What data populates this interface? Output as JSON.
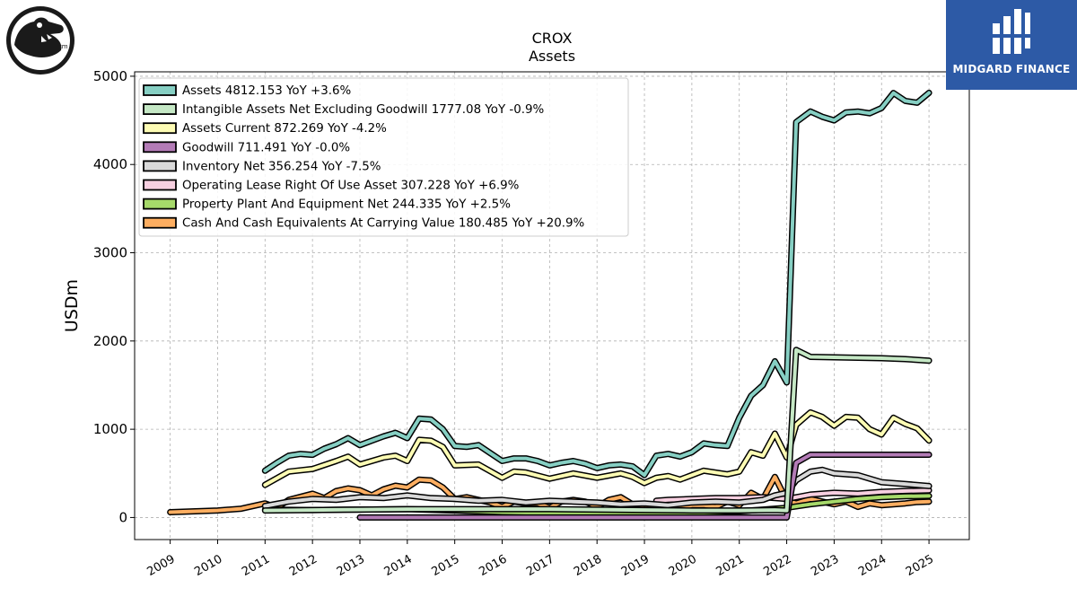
{
  "header": {
    "ticker": "CROX",
    "subtitle": "Assets"
  },
  "brand": {
    "name": "MIDGARD FINANCE",
    "color": "#2d5aa6"
  },
  "logo": {
    "icon": "crocodile-logo",
    "mark": "tm"
  },
  "chart_data": {
    "type": "line",
    "ylabel": "USDm",
    "xlabel": "",
    "ylim": [
      -250,
      5050
    ],
    "xlim": [
      2008.25,
      2025.85
    ],
    "yticks": [
      0,
      1000,
      2000,
      3000,
      4000,
      5000
    ],
    "xticks": [
      "2009",
      "2010",
      "2011",
      "2012",
      "2013",
      "2014",
      "2015",
      "2016",
      "2017",
      "2018",
      "2019",
      "2020",
      "2021",
      "2022",
      "2023",
      "2024",
      "2025"
    ],
    "grid": true,
    "legend_position": "top-left",
    "series": [
      {
        "name": "Assets",
        "legend": "Assets  4812.153 YoY +3.6%",
        "color": "#86cfc3",
        "x": [
          2011.0,
          2011.25,
          2011.5,
          2011.75,
          2012.0,
          2012.25,
          2012.5,
          2012.75,
          2013.0,
          2013.25,
          2013.5,
          2013.75,
          2014.0,
          2014.25,
          2014.5,
          2014.75,
          2015.0,
          2015.25,
          2015.5,
          2015.75,
          2016.0,
          2016.25,
          2016.5,
          2016.75,
          2017.0,
          2017.25,
          2017.5,
          2017.75,
          2018.0,
          2018.25,
          2018.5,
          2018.75,
          2019.0,
          2019.25,
          2019.5,
          2019.75,
          2020.0,
          2020.25,
          2020.5,
          2020.75,
          2021.0,
          2021.25,
          2021.5,
          2021.75,
          2022.0,
          2022.2,
          2022.5,
          2022.75,
          2023.0,
          2023.25,
          2023.5,
          2023.75,
          2024.0,
          2024.25,
          2024.5,
          2024.75,
          2025.0
        ],
        "values": [
          530,
          620,
          700,
          720,
          710,
          780,
          830,
          900,
          820,
          870,
          920,
          960,
          900,
          1120,
          1110,
          1000,
          810,
          800,
          820,
          730,
          640,
          670,
          670,
          640,
          590,
          620,
          640,
          610,
          560,
          590,
          600,
          580,
          480,
          700,
          720,
          690,
          740,
          840,
          820,
          810,
          1130,
          1380,
          1500,
          1770,
          1530,
          4480,
          4600,
          4540,
          4500,
          4590,
          4600,
          4580,
          4640,
          4810,
          4720,
          4700,
          4812
        ]
      },
      {
        "name": "Intangible Assets Net Excluding Goodwill",
        "legend": "Intangible Assets Net Excluding Goodwill  1777.08 YoY -0.9%",
        "color": "#c5e8c5",
        "x": [
          2011.0,
          2012.0,
          2013.0,
          2014.0,
          2015.0,
          2016.0,
          2017.0,
          2018.0,
          2019.0,
          2020.0,
          2021.0,
          2021.75,
          2022.0,
          2022.2,
          2022.5,
          2023.0,
          2023.5,
          2024.0,
          2024.5,
          2025.0
        ],
        "values": [
          80,
          85,
          90,
          95,
          95,
          95,
          95,
          90,
          85,
          80,
          80,
          85,
          80,
          1900,
          1820,
          1815,
          1810,
          1805,
          1795,
          1777
        ]
      },
      {
        "name": "Assets Current",
        "legend": "Assets Current  872.269 YoY -4.2%",
        "color": "#fdfcb4",
        "x": [
          2011.0,
          2011.5,
          2012.0,
          2012.5,
          2012.75,
          2013.0,
          2013.5,
          2013.75,
          2014.0,
          2014.25,
          2014.5,
          2014.75,
          2015.0,
          2015.5,
          2016.0,
          2016.25,
          2016.5,
          2017.0,
          2017.5,
          2018.0,
          2018.5,
          2018.75,
          2019.0,
          2019.25,
          2019.5,
          2019.75,
          2020.0,
          2020.25,
          2020.5,
          2020.75,
          2021.0,
          2021.25,
          2021.5,
          2021.75,
          2022.0,
          2022.2,
          2022.5,
          2022.75,
          2023.0,
          2023.25,
          2023.5,
          2023.75,
          2024.0,
          2024.25,
          2024.5,
          2024.75,
          2025.0
        ],
        "values": [
          370,
          520,
          550,
          640,
          690,
          600,
          680,
          700,
          640,
          880,
          870,
          800,
          590,
          600,
          450,
          520,
          510,
          440,
          500,
          450,
          500,
          460,
          390,
          450,
          470,
          430,
          480,
          530,
          510,
          490,
          520,
          740,
          700,
          950,
          680,
          1050,
          1190,
          1140,
          1040,
          1140,
          1130,
          1000,
          940,
          1130,
          1060,
          1010,
          872
        ]
      },
      {
        "name": "Goodwill",
        "legend": "Goodwill  711.491 YoY -0.0%",
        "color": "#b37bb6",
        "x": [
          2013.0,
          2014.0,
          2015.0,
          2016.0,
          2017.0,
          2018.0,
          2019.0,
          2020.0,
          2021.0,
          2022.0,
          2022.2,
          2022.5,
          2023.0,
          2024.0,
          2025.0
        ],
        "values": [
          0,
          0,
          0,
          0,
          0,
          0,
          0,
          0,
          0,
          0,
          620,
          711,
          711,
          711,
          711
        ]
      },
      {
        "name": "Inventory Net",
        "legend": "Inventory Net  356.254 YoY -7.5%",
        "color": "#d9d9d9",
        "x": [
          2011.0,
          2011.5,
          2012.0,
          2012.5,
          2013.0,
          2013.5,
          2014.0,
          2014.5,
          2015.0,
          2015.5,
          2016.0,
          2016.5,
          2017.0,
          2017.5,
          2018.0,
          2018.5,
          2019.0,
          2019.5,
          2020.0,
          2020.5,
          2021.0,
          2021.5,
          2021.75,
          2022.0,
          2022.2,
          2022.5,
          2022.75,
          2023.0,
          2023.5,
          2024.0,
          2024.5,
          2025.0
        ],
        "values": [
          130,
          180,
          210,
          200,
          230,
          220,
          250,
          220,
          210,
          190,
          200,
          170,
          190,
          180,
          170,
          150,
          160,
          140,
          170,
          180,
          170,
          200,
          250,
          280,
          420,
          520,
          540,
          500,
          480,
          400,
          380,
          356
        ]
      },
      {
        "name": "Operating Lease Right Of Use Asset",
        "legend": "Operating Lease Right Of Use Asset  307.228 YoY +6.9%",
        "color": "#f7cfe0",
        "x": [
          2019.25,
          2019.5,
          2020.0,
          2020.5,
          2021.0,
          2021.5,
          2022.0,
          2022.5,
          2023.0,
          2023.5,
          2024.0,
          2024.5,
          2025.0
        ],
        "values": [
          190,
          200,
          210,
          220,
          220,
          230,
          210,
          260,
          280,
          270,
          290,
          300,
          307
        ]
      },
      {
        "name": "Property Plant And Equipment Net",
        "legend": "Property Plant And Equipment Net  244.335 YoY +2.5%",
        "color": "#a6d96a",
        "x": [
          2011.0,
          2012.0,
          2013.0,
          2014.0,
          2015.0,
          2016.0,
          2017.0,
          2018.0,
          2019.0,
          2020.0,
          2021.0,
          2021.5,
          2022.0,
          2022.5,
          2023.0,
          2023.5,
          2024.0,
          2024.5,
          2025.0
        ],
        "values": [
          90,
          85,
          90,
          95,
          80,
          60,
          50,
          45,
          40,
          50,
          70,
          90,
          110,
          150,
          180,
          210,
          230,
          240,
          244
        ]
      },
      {
        "name": "Cash And Cash Equivalents At Carrying Value",
        "legend": "Cash And Cash Equivalents At Carrying Value  180.485 YoY +20.9%",
        "color": "#fdae61",
        "x": [
          2009.0,
          2010.0,
          2010.5,
          2011.0,
          2011.25,
          2011.5,
          2012.0,
          2012.25,
          2012.5,
          2012.75,
          2013.0,
          2013.25,
          2013.5,
          2013.75,
          2014.0,
          2014.25,
          2014.5,
          2014.75,
          2015.0,
          2015.25,
          2015.5,
          2015.75,
          2016.0,
          2016.25,
          2016.5,
          2016.75,
          2017.0,
          2017.25,
          2017.5,
          2017.75,
          2018.0,
          2018.25,
          2018.5,
          2018.75,
          2019.0,
          2019.25,
          2019.5,
          2019.75,
          2020.0,
          2020.25,
          2020.5,
          2020.75,
          2021.0,
          2021.25,
          2021.5,
          2021.75,
          2022.0,
          2022.2,
          2022.5,
          2022.75,
          2023.0,
          2023.25,
          2023.5,
          2023.75,
          2024.0,
          2024.25,
          2024.5,
          2024.75,
          2025.0
        ],
        "values": [
          60,
          80,
          100,
          160,
          110,
          200,
          270,
          220,
          300,
          330,
          310,
          250,
          320,
          360,
          340,
          430,
          420,
          340,
          210,
          230,
          200,
          170,
          120,
          180,
          160,
          160,
          110,
          180,
          200,
          180,
          120,
          200,
          230,
          150,
          100,
          130,
          120,
          100,
          140,
          140,
          120,
          180,
          140,
          280,
          210,
          460,
          190,
          160,
          210,
          180,
          150,
          180,
          120,
          160,
          140,
          150,
          160,
          175,
          180
        ]
      }
    ]
  }
}
